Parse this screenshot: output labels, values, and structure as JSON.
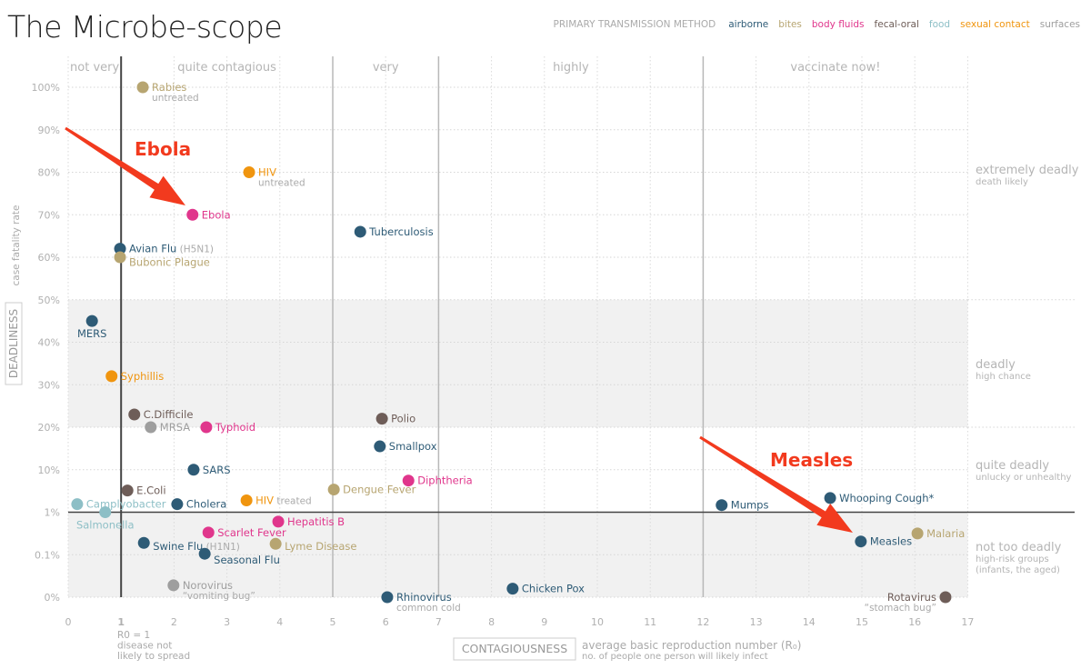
{
  "title": "The Microbe-scope",
  "legend": {
    "heading": "PRIMARY TRANSMISSION METHOD",
    "items": [
      {
        "key": "airborne",
        "label": "airborne",
        "color": "#2e5b76"
      },
      {
        "key": "bites",
        "label": "bites",
        "color": "#b7a571"
      },
      {
        "key": "body",
        "label": "body fluids",
        "color": "#e0368c"
      },
      {
        "key": "fecal",
        "label": "fecal-oral",
        "color": "#6e5d58"
      },
      {
        "key": "food",
        "label": "food",
        "color": "#8dbfc6"
      },
      {
        "key": "sexual",
        "label": "sexual contact",
        "color": "#f0950f"
      },
      {
        "key": "surfaces",
        "label": "surfaces",
        "color": "#9e9e9e"
      }
    ]
  },
  "chart_data": {
    "type": "scatter",
    "title": "The Microbe-scope",
    "x_axis": {
      "label": "CONTAGIOUSNESS",
      "sublabel": "average basic reproduction number (R₀)",
      "sublabel2": "no. of people one person will likely infect",
      "range": [
        0,
        17
      ],
      "ticks": [
        "0",
        "1",
        "2",
        "3",
        "4",
        "5",
        "6",
        "7",
        "8",
        "9",
        "10",
        "11",
        "12",
        "13",
        "14",
        "15",
        "16",
        "17"
      ],
      "r0_note": [
        "R0 = 1",
        "disease not",
        "likely to spread"
      ]
    },
    "y_axis": {
      "label": "DEADLINESS",
      "sublabel": "case fatality rate",
      "scale": "non-uniform",
      "tick_values": [
        0,
        0.1,
        1,
        10,
        20,
        30,
        40,
        50,
        60,
        70,
        80,
        90,
        100
      ],
      "ticks": [
        "0%",
        "0.1%",
        "1%",
        "10%",
        "20%",
        "30%",
        "40%",
        "50%",
        "60%",
        "70%",
        "80%",
        "90%",
        "100%"
      ]
    },
    "x_zones": [
      {
        "label": "not very",
        "from": 0,
        "to": 1
      },
      {
        "label": "quite contagious",
        "from": 1,
        "to": 5
      },
      {
        "label": "very",
        "from": 5,
        "to": 7
      },
      {
        "label": "highly",
        "from": 7,
        "to": 12
      },
      {
        "label": "vaccinate now!",
        "from": 12,
        "to": 17
      }
    ],
    "y_zones": [
      {
        "label": "extremely deadly",
        "sub": [
          "death likely"
        ]
      },
      {
        "label": "deadly",
        "sub": [
          "high chance"
        ]
      },
      {
        "label": "quite deadly",
        "sub": [
          "unlucky or unhealthy"
        ]
      },
      {
        "label": "not too deadly",
        "sub": [
          "high-risk groups",
          "(infants, the aged)"
        ]
      }
    ],
    "grid": true,
    "legend_position": "top-right",
    "points": [
      {
        "name": "Rabies",
        "note": "untreated",
        "x": 1.41,
        "y": 100,
        "t": "bites"
      },
      {
        "name": "HIV",
        "note": "untreated",
        "x": 3.42,
        "y": 80,
        "t": "sexual"
      },
      {
        "name": "Ebola",
        "x": 2.35,
        "y": 70,
        "t": "body"
      },
      {
        "name": "Tuberculosis",
        "x": 5.52,
        "y": 66,
        "t": "airborne"
      },
      {
        "name": "Avian Flu",
        "note": "(H5N1)",
        "x": 0.98,
        "y": 62,
        "t": "airborne"
      },
      {
        "name": "Bubonic Plague",
        "x": 0.98,
        "y": 60,
        "t": "bites"
      },
      {
        "name": "MERS",
        "x": 0.45,
        "y": 45,
        "t": "airborne"
      },
      {
        "name": "Syphillis",
        "x": 0.82,
        "y": 32,
        "t": "sexual"
      },
      {
        "name": "C.Difficile",
        "x": 1.25,
        "y": 23,
        "t": "fecal"
      },
      {
        "name": "MRSA",
        "x": 1.56,
        "y": 20,
        "t": "surfaces"
      },
      {
        "name": "Typhoid",
        "x": 2.61,
        "y": 20,
        "t": "body"
      },
      {
        "name": "Polio",
        "x": 5.93,
        "y": 22,
        "t": "fecal"
      },
      {
        "name": "Smallpox",
        "x": 5.89,
        "y": 15.5,
        "t": "airborne"
      },
      {
        "name": "SARS",
        "x": 2.37,
        "y": 10,
        "t": "airborne"
      },
      {
        "name": "Diphtheria",
        "x": 6.43,
        "y": 7.7,
        "t": "body"
      },
      {
        "name": "E.Coli",
        "x": 1.12,
        "y": 5.6,
        "t": "fecal"
      },
      {
        "name": "Dengue Fever",
        "x": 5.02,
        "y": 5.8,
        "t": "bites"
      },
      {
        "name": "Camplyobacter",
        "x": 0.17,
        "y": 2.7,
        "t": "food"
      },
      {
        "name": "Salmonella",
        "x": 0.7,
        "y": 1,
        "t": "food"
      },
      {
        "name": "Cholera",
        "x": 2.06,
        "y": 2.7,
        "t": "airborne"
      },
      {
        "name": "HIV",
        "note": "treated",
        "x": 3.37,
        "y": 3.5,
        "t": "sexual"
      },
      {
        "name": "Mumps",
        "x": 12.35,
        "y": 2.5,
        "t": "airborne"
      },
      {
        "name": "Whooping Cough*",
        "x": 14.4,
        "y": 4,
        "t": "airborne"
      },
      {
        "name": "Hepatitis B",
        "x": 3.97,
        "y": 0.8,
        "t": "body"
      },
      {
        "name": "Scarlet Fever",
        "x": 2.65,
        "y": 0.57,
        "t": "body"
      },
      {
        "name": "Swine Flu",
        "note": "(H1N1)",
        "x": 1.43,
        "y": 0.35,
        "t": "airborne"
      },
      {
        "name": "Lyme Disease",
        "x": 3.92,
        "y": 0.33,
        "t": "bites"
      },
      {
        "name": "Seasonal Flu",
        "x": 2.58,
        "y": 0.12,
        "t": "airborne"
      },
      {
        "name": "Norovirus",
        "note": "“vomiting bug”",
        "x": 1.99,
        "y": 0.028,
        "t": "surfaces"
      },
      {
        "name": "Rhinovirus",
        "note": "common cold",
        "x": 6.03,
        "y": 0,
        "t": "airborne"
      },
      {
        "name": "Chicken Pox",
        "x": 8.4,
        "y": 0.02,
        "t": "airborne"
      },
      {
        "name": "Measles",
        "x": 14.98,
        "y": 0.38,
        "t": "airborne"
      },
      {
        "name": "Malaria",
        "x": 16.05,
        "y": 0.55,
        "t": "bites"
      },
      {
        "name": "Rotavirus",
        "note": "“stomach bug”",
        "x": 16.58,
        "y": 0,
        "t": "fecal"
      }
    ],
    "annotations": [
      {
        "label": "Ebola",
        "color": "#f23a1e"
      },
      {
        "label": "Measles",
        "color": "#f23a1e"
      }
    ]
  }
}
